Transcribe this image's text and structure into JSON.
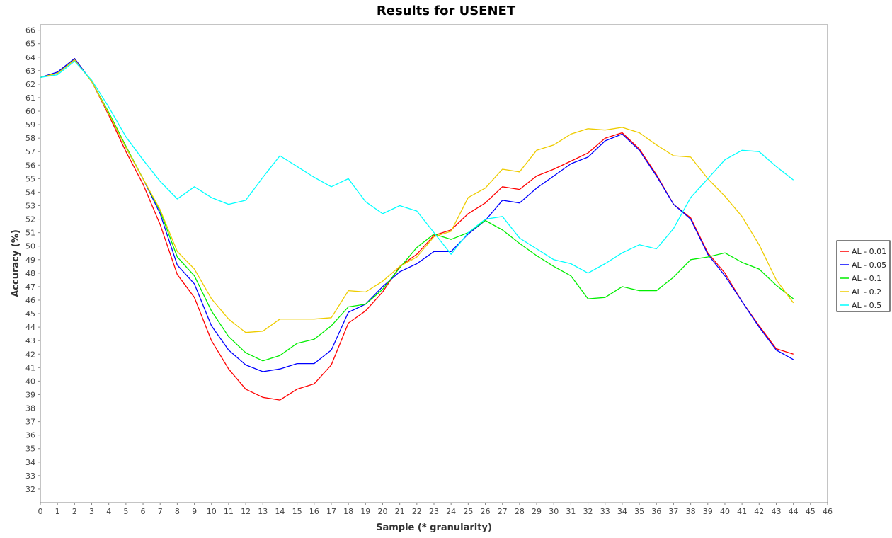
{
  "chart_data": {
    "type": "line",
    "title": "Results for USENET",
    "xlabel": "Sample (* granularity)",
    "ylabel": "Accuracy (%)",
    "xlim": [
      0,
      46
    ],
    "ylim": [
      31,
      66.4
    ],
    "x_ticks": [
      0,
      1,
      2,
      3,
      4,
      5,
      6,
      7,
      8,
      9,
      10,
      11,
      12,
      13,
      14,
      15,
      16,
      17,
      18,
      19,
      20,
      21,
      22,
      23,
      24,
      25,
      26,
      27,
      28,
      29,
      30,
      31,
      32,
      33,
      34,
      35,
      36,
      37,
      38,
      39,
      40,
      41,
      42,
      43,
      44,
      45,
      46
    ],
    "y_ticks": [
      32,
      33,
      34,
      35,
      36,
      37,
      38,
      39,
      40,
      41,
      42,
      43,
      44,
      45,
      46,
      47,
      48,
      49,
      50,
      51,
      52,
      53,
      54,
      55,
      56,
      57,
      58,
      59,
      60,
      61,
      62,
      63,
      64,
      65,
      66
    ],
    "grid": false,
    "legend_position": "right",
    "x": [
      0,
      1,
      2,
      3,
      4,
      5,
      6,
      7,
      8,
      9,
      10,
      11,
      12,
      13,
      14,
      15,
      16,
      17,
      18,
      19,
      20,
      21,
      22,
      23,
      24,
      25,
      26,
      27,
      28,
      29,
      30,
      31,
      32,
      33,
      34,
      35,
      36,
      37,
      38,
      39,
      40,
      41,
      42,
      43,
      44
    ],
    "series": [
      {
        "name": "AL - 0.01",
        "color": "#ff0000",
        "values": [
          62.5,
          62.8,
          63.9,
          62.2,
          59.7,
          57.0,
          54.6,
          51.6,
          47.9,
          46.2,
          43.0,
          40.9,
          39.4,
          38.8,
          38.6,
          39.4,
          39.8,
          41.2,
          44.3,
          45.2,
          46.6,
          48.5,
          49.4,
          50.8,
          51.2,
          52.4,
          53.2,
          54.4,
          54.2,
          55.2,
          55.7,
          56.3,
          56.9,
          58.0,
          58.4,
          57.2,
          55.3,
          53.1,
          52.1,
          49.5,
          48.0,
          45.9,
          44.1,
          42.4,
          42.0
        ]
      },
      {
        "name": "AL - 0.05",
        "color": "#0000ff",
        "values": [
          62.5,
          62.9,
          63.9,
          62.2,
          59.8,
          57.3,
          55.0,
          52.4,
          48.6,
          47.2,
          44.1,
          42.3,
          41.2,
          40.7,
          40.9,
          41.3,
          41.3,
          42.3,
          45.1,
          45.7,
          47.0,
          48.1,
          48.7,
          49.6,
          49.6,
          50.9,
          51.9,
          53.4,
          53.2,
          54.3,
          55.2,
          56.1,
          56.6,
          57.8,
          58.3,
          57.1,
          55.2,
          53.1,
          52.0,
          49.4,
          47.8,
          45.9,
          44.0,
          42.3,
          41.6
        ]
      },
      {
        "name": "AL - 0.1",
        "color": "#00ee00",
        "values": [
          62.5,
          62.8,
          63.8,
          62.2,
          59.9,
          57.4,
          55.0,
          52.6,
          49.2,
          47.8,
          45.2,
          43.3,
          42.1,
          41.5,
          41.9,
          42.8,
          43.1,
          44.1,
          45.5,
          45.7,
          46.8,
          48.4,
          49.9,
          50.9,
          50.5,
          51.0,
          51.9,
          51.2,
          50.2,
          49.3,
          48.5,
          47.8,
          46.1,
          46.2,
          47.0,
          46.7,
          46.7,
          47.7,
          49.0,
          49.2,
          49.5,
          48.8,
          48.3,
          47.1,
          46.1
        ]
      },
      {
        "name": "AL - 0.2",
        "color": "#eecc00",
        "values": [
          62.5,
          62.8,
          63.8,
          62.2,
          59.8,
          57.3,
          55.0,
          52.7,
          49.6,
          48.3,
          46.1,
          44.6,
          43.6,
          43.7,
          44.6,
          44.6,
          44.6,
          44.7,
          46.7,
          46.6,
          47.4,
          48.5,
          49.2,
          50.7,
          51.1,
          53.6,
          54.3,
          55.7,
          55.5,
          57.1,
          57.5,
          58.3,
          58.7,
          58.6,
          58.8,
          58.4,
          57.5,
          56.7,
          56.6,
          55.0,
          53.7,
          52.2,
          50.1,
          47.5,
          45.8
        ]
      },
      {
        "name": "AL - 0.5",
        "color": "#00ffff",
        "values": [
          62.5,
          62.7,
          63.7,
          62.3,
          60.3,
          58.1,
          56.4,
          54.8,
          53.5,
          54.4,
          53.6,
          53.1,
          53.4,
          55.1,
          56.7,
          55.9,
          55.1,
          54.4,
          55.0,
          53.3,
          52.4,
          53.0,
          52.6,
          51.0,
          49.4,
          51.0,
          52.0,
          52.2,
          50.6,
          49.8,
          49.0,
          48.7,
          48.0,
          48.7,
          49.5,
          50.1,
          49.8,
          51.3,
          53.6,
          55.0,
          56.4,
          57.1,
          57.0,
          55.9,
          54.9
        ]
      }
    ]
  }
}
